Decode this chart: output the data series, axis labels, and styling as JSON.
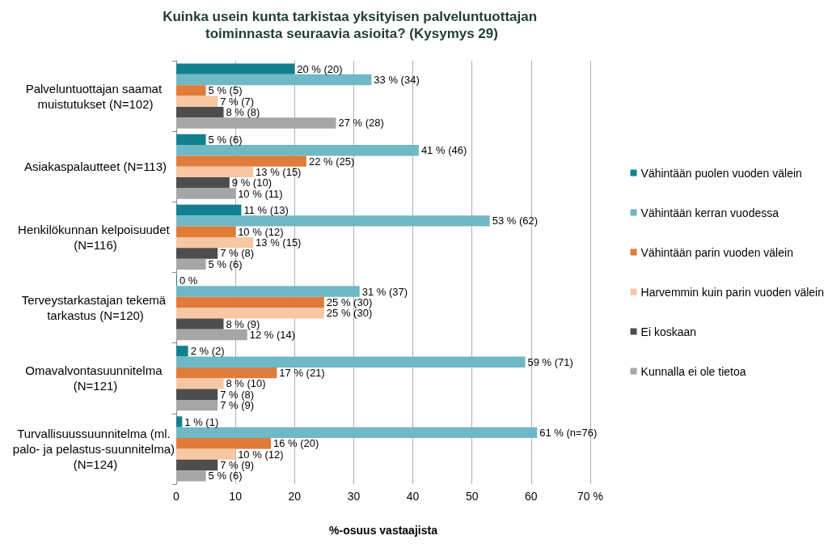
{
  "chart_data": {
    "type": "bar",
    "orientation": "horizontal",
    "title": "Kuinka usein kunta tarkistaa yksityisen palveluntuottajan toiminnasta seuraavia asioita? (Kysymys 29)",
    "xlabel": "%-osuus vastaajista",
    "categories": [
      "Palveluntuottajan saamat muistutukset (N=102)",
      "Asiakaspalautteet (N=113)",
      "Henkilökunnan kelpoisuudet (N=116)",
      "Terveystarkastajan tekemä tarkastus (N=120)",
      "Omavalvontasuunnitelma (N=121)",
      "Turvallisuussuunnitelma (ml. palo- ja pelastus-suunnitelma) (N=124)"
    ],
    "series": [
      {
        "name": "Vähintään puolen vuoden välein",
        "color": "#13808f",
        "values": [
          20,
          5,
          11,
          0,
          2,
          1
        ],
        "value_labels": [
          "20 % (20)",
          "5 % (6)",
          "11 % (13)",
          "0 %",
          "2 % (2)",
          "1 % (1)"
        ]
      },
      {
        "name": "Vähintään kerran vuodessa",
        "color": "#6fb8c6",
        "values": [
          33,
          41,
          53,
          31,
          59,
          61
        ],
        "value_labels": [
          "33 % (34)",
          "41 % (46)",
          "53 % (62)",
          "31 % (37)",
          "59 % (71)",
          "61 % (n=76)"
        ]
      },
      {
        "name": "Vähintään parin vuoden välein",
        "color": "#e07b39",
        "values": [
          5,
          22,
          10,
          25,
          17,
          16
        ],
        "value_labels": [
          "5 % (5)",
          "22 % (25)",
          "10 % (12)",
          "25 % (30)",
          "17 % (21)",
          "16 % (20)"
        ]
      },
      {
        "name": "Harvemmin kuin parin vuoden välein",
        "color": "#f7c6a3",
        "values": [
          7,
          13,
          13,
          25,
          8,
          10
        ],
        "value_labels": [
          "7 % (7)",
          "13 % (15)",
          "13 % (15)",
          "25 % (30)",
          "8 % (10)",
          "10 % (12)"
        ]
      },
      {
        "name": "Ei koskaan",
        "color": "#4d4d4d",
        "values": [
          8,
          9,
          7,
          8,
          7,
          7
        ],
        "value_labels": [
          "8 % (8)",
          "9 % (10)",
          "7 % (8)",
          "8 % (9)",
          "7 % (8)",
          "7 % (9)"
        ]
      },
      {
        "name": "Kunnalla ei ole tietoa",
        "color": "#a6a6a6",
        "values": [
          27,
          10,
          5,
          12,
          7,
          5
        ],
        "value_labels": [
          "27 % (28)",
          "10 % (11)",
          "5 % (6)",
          "12 % (14)",
          "7 % (9)",
          "5 % (6)"
        ]
      }
    ],
    "xlim": [
      0,
      70
    ],
    "xticks": [
      0,
      10,
      20,
      30,
      40,
      50,
      60,
      {
        "value": 70,
        "label": "70 %"
      }
    ],
    "grid": "x",
    "legend": "right"
  }
}
